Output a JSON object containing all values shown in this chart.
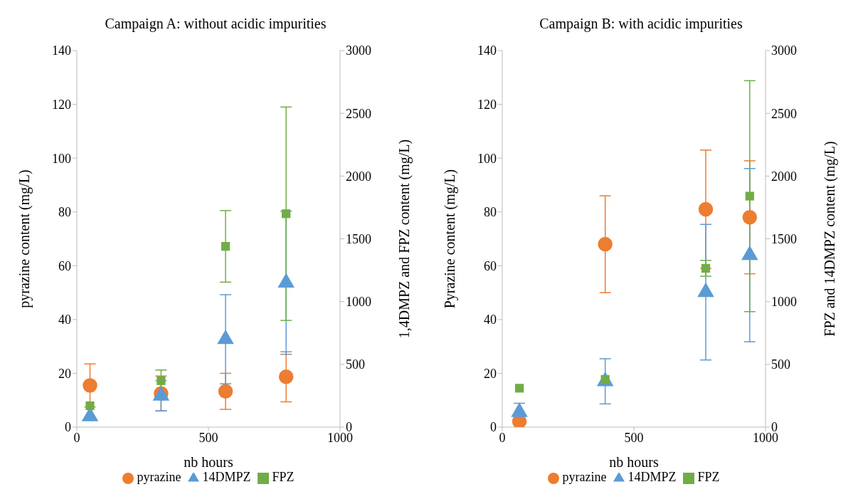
{
  "chart_data": [
    {
      "type": "scatter",
      "title": "Campaign A: without acidic impurities",
      "xlabel": "nb hours",
      "ylabel": "pyrazine content (mg/L)",
      "y2label": "1,4DMPZ and FPZ content (mg/L)",
      "xlim": [
        0,
        1000
      ],
      "xticks": [
        0,
        500,
        1000
      ],
      "ylim": [
        0,
        140
      ],
      "yticks": [
        0,
        20,
        40,
        60,
        80,
        100,
        120,
        140
      ],
      "y2lim": [
        0,
        3000
      ],
      "y2ticks": [
        0,
        500,
        1000,
        1500,
        2000,
        2500,
        3000
      ],
      "grid": false,
      "legend": "bottom",
      "series": [
        {
          "name": "pyrazine",
          "color": "#ed7d31",
          "marker": "circle",
          "x": [
            50,
            320,
            565,
            795
          ],
          "values": [
            15.5,
            12.5,
            13.3,
            18.7
          ],
          "errors": [
            8,
            6.5,
            6.7,
            9.3
          ]
        },
        {
          "name": "14DMPZ",
          "color": "#5b9bd5",
          "marker": "triangle",
          "axis": "y2",
          "x": [
            50,
            320,
            565,
            795
          ],
          "values": [
            85,
            250,
            700,
            1150
          ],
          "errors": [
            null,
            120,
            355,
            570
          ]
        },
        {
          "name": "FPZ",
          "color": "#70ad47",
          "marker": "square",
          "axis": "y2",
          "x": [
            50,
            320,
            565,
            795
          ],
          "values": [
            170,
            370,
            1440,
            1700
          ],
          "errors": [
            null,
            85,
            285,
            850
          ]
        }
      ]
    },
    {
      "type": "scatter",
      "title": "Campaign B: with acidic impurities",
      "xlabel": "nb hours",
      "ylabel": "Pyrazine content (mg/L)",
      "y2label": "FPZ and 14DMPZ content (mg/L)",
      "xlim": [
        0,
        1000
      ],
      "xticks": [
        0,
        500,
        1000
      ],
      "ylim": [
        0,
        140
      ],
      "yticks": [
        0,
        20,
        40,
        60,
        80,
        100,
        120,
        140
      ],
      "y2lim": [
        0,
        3000
      ],
      "y2ticks": [
        0,
        500,
        1000,
        1500,
        2000,
        2500,
        3000
      ],
      "grid": false,
      "legend": "bottom",
      "series": [
        {
          "name": "pyrazine",
          "color": "#ed7d31",
          "marker": "circle",
          "x": [
            65,
            391,
            773,
            940
          ],
          "values": [
            2.1,
            68,
            81,
            78
          ],
          "errors": [
            null,
            18,
            22,
            21
          ]
        },
        {
          "name": "14DMPZ",
          "color": "#5b9bd5",
          "marker": "triangle",
          "axis": "y2",
          "x": [
            65,
            391,
            773,
            940
          ],
          "values": [
            120,
            365,
            1075,
            1370
          ],
          "errors": [
            70,
            180,
            540,
            690
          ]
        },
        {
          "name": "FPZ",
          "color": "#70ad47",
          "marker": "square",
          "axis": "y2",
          "x": [
            65,
            391,
            773,
            940
          ],
          "values": [
            310,
            380,
            1265,
            1840
          ],
          "errors": [
            null,
            null,
            63,
            920
          ]
        }
      ]
    }
  ]
}
